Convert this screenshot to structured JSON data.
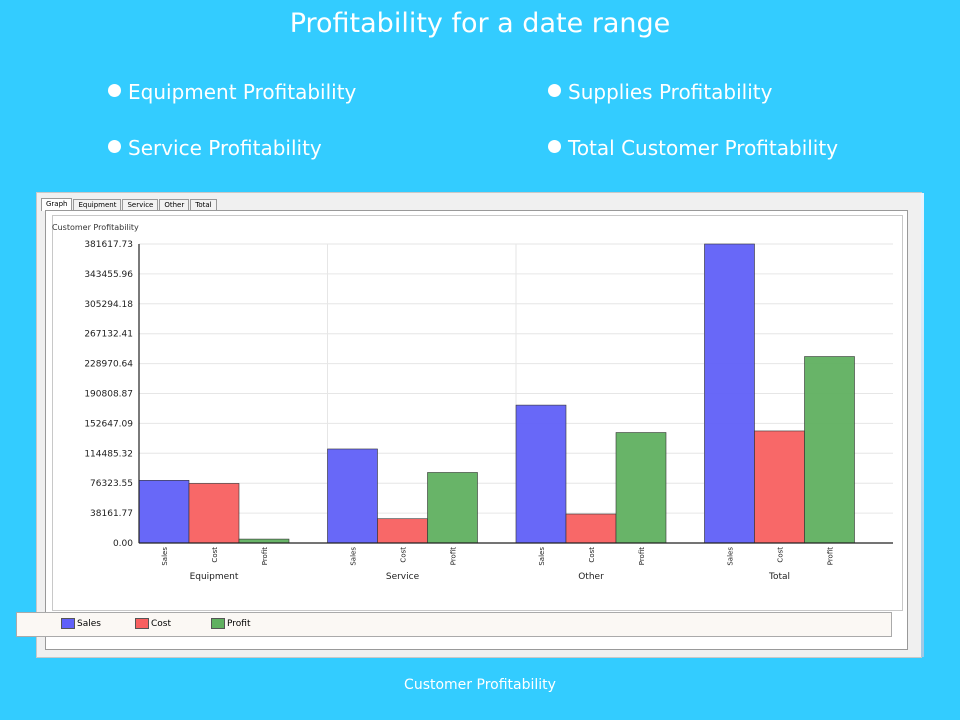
{
  "slide": {
    "title": "Profitability for a date range",
    "bullets": [
      "Equipment Profitability",
      "Supplies Profitability",
      "Service Profitability",
      "Total Customer Profitability"
    ],
    "caption": "Customer Profitability"
  },
  "window": {
    "tabs": [
      "Graph",
      "Equipment",
      "Service",
      "Other",
      "Total"
    ],
    "active_tab": "Graph"
  },
  "colors": {
    "Sales": "#6060f8",
    "Cost": "#f86060",
    "Profit": "#60b060"
  },
  "chart_data": {
    "type": "bar",
    "title": "Customer Profitability",
    "categories": [
      "Equipment",
      "Service",
      "Other",
      "Total"
    ],
    "bar_labels": [
      "Sales",
      "Cost",
      "Profit"
    ],
    "series": [
      {
        "name": "Sales",
        "values": [
          80000,
          120000,
          176000,
          381617.73
        ]
      },
      {
        "name": "Cost",
        "values": [
          76000,
          31000,
          37000,
          143000
        ]
      },
      {
        "name": "Profit",
        "values": [
          5000,
          90000,
          141000,
          238000
        ]
      }
    ],
    "yticks": [
      "0.00",
      "38161.77",
      "76323.55",
      "114485.32",
      "152647.09",
      "190808.87",
      "228970.64",
      "267132.41",
      "305294.18",
      "343455.96",
      "381617.73"
    ],
    "ylim": [
      0,
      381617.73
    ],
    "legend_position": "bottom",
    "grid": true
  }
}
